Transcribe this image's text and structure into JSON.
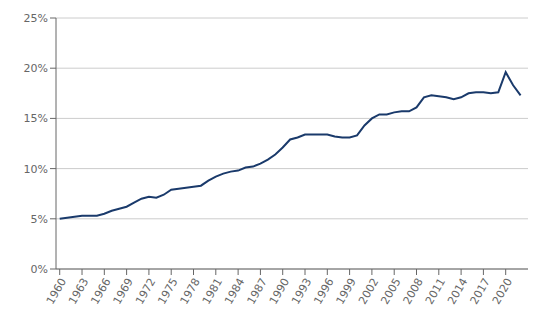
{
  "chart_data": {
    "type": "line",
    "x": [
      1960,
      1961,
      1962,
      1963,
      1964,
      1965,
      1966,
      1967,
      1968,
      1969,
      1970,
      1971,
      1972,
      1973,
      1974,
      1975,
      1976,
      1977,
      1978,
      1979,
      1980,
      1981,
      1982,
      1983,
      1984,
      1985,
      1986,
      1987,
      1988,
      1989,
      1990,
      1991,
      1992,
      1993,
      1994,
      1995,
      1996,
      1997,
      1998,
      1999,
      2000,
      2001,
      2002,
      2003,
      2004,
      2005,
      2006,
      2007,
      2008,
      2009,
      2010,
      2011,
      2012,
      2013,
      2014,
      2015,
      2016,
      2017,
      2018,
      2019,
      2020,
      2021,
      2022
    ],
    "values": [
      5.0,
      5.1,
      5.2,
      5.3,
      5.3,
      5.3,
      5.5,
      5.8,
      6.0,
      6.2,
      6.6,
      7.0,
      7.2,
      7.1,
      7.4,
      7.9,
      8.0,
      8.1,
      8.2,
      8.3,
      8.8,
      9.2,
      9.5,
      9.7,
      9.8,
      10.1,
      10.2,
      10.5,
      10.9,
      11.4,
      12.1,
      12.9,
      13.1,
      13.4,
      13.4,
      13.4,
      13.4,
      13.2,
      13.1,
      13.1,
      13.3,
      14.3,
      15.0,
      15.4,
      15.4,
      15.6,
      15.7,
      15.7,
      16.1,
      17.1,
      17.3,
      17.2,
      17.1,
      16.9,
      17.1,
      17.5,
      17.6,
      17.6,
      17.5,
      17.6,
      19.6,
      18.3,
      17.3
    ],
    "color": "#1a3a6b",
    "xlim": [
      1959.5,
      2023
    ],
    "xticks": [
      1960,
      1963,
      1966,
      1969,
      1972,
      1975,
      1978,
      1981,
      1984,
      1987,
      1990,
      1993,
      1996,
      1999,
      2002,
      2005,
      2008,
      2011,
      2014,
      2017,
      2020
    ],
    "ylim": [
      0,
      25
    ],
    "yticks": [
      {
        "value": 0,
        "label": "0%"
      },
      {
        "value": 5,
        "label": "5%"
      },
      {
        "value": 10,
        "label": "10%"
      },
      {
        "value": 15,
        "label": "15%"
      },
      {
        "value": 20,
        "label": "20%"
      },
      {
        "value": 25,
        "label": "25%"
      }
    ],
    "grid": true
  }
}
